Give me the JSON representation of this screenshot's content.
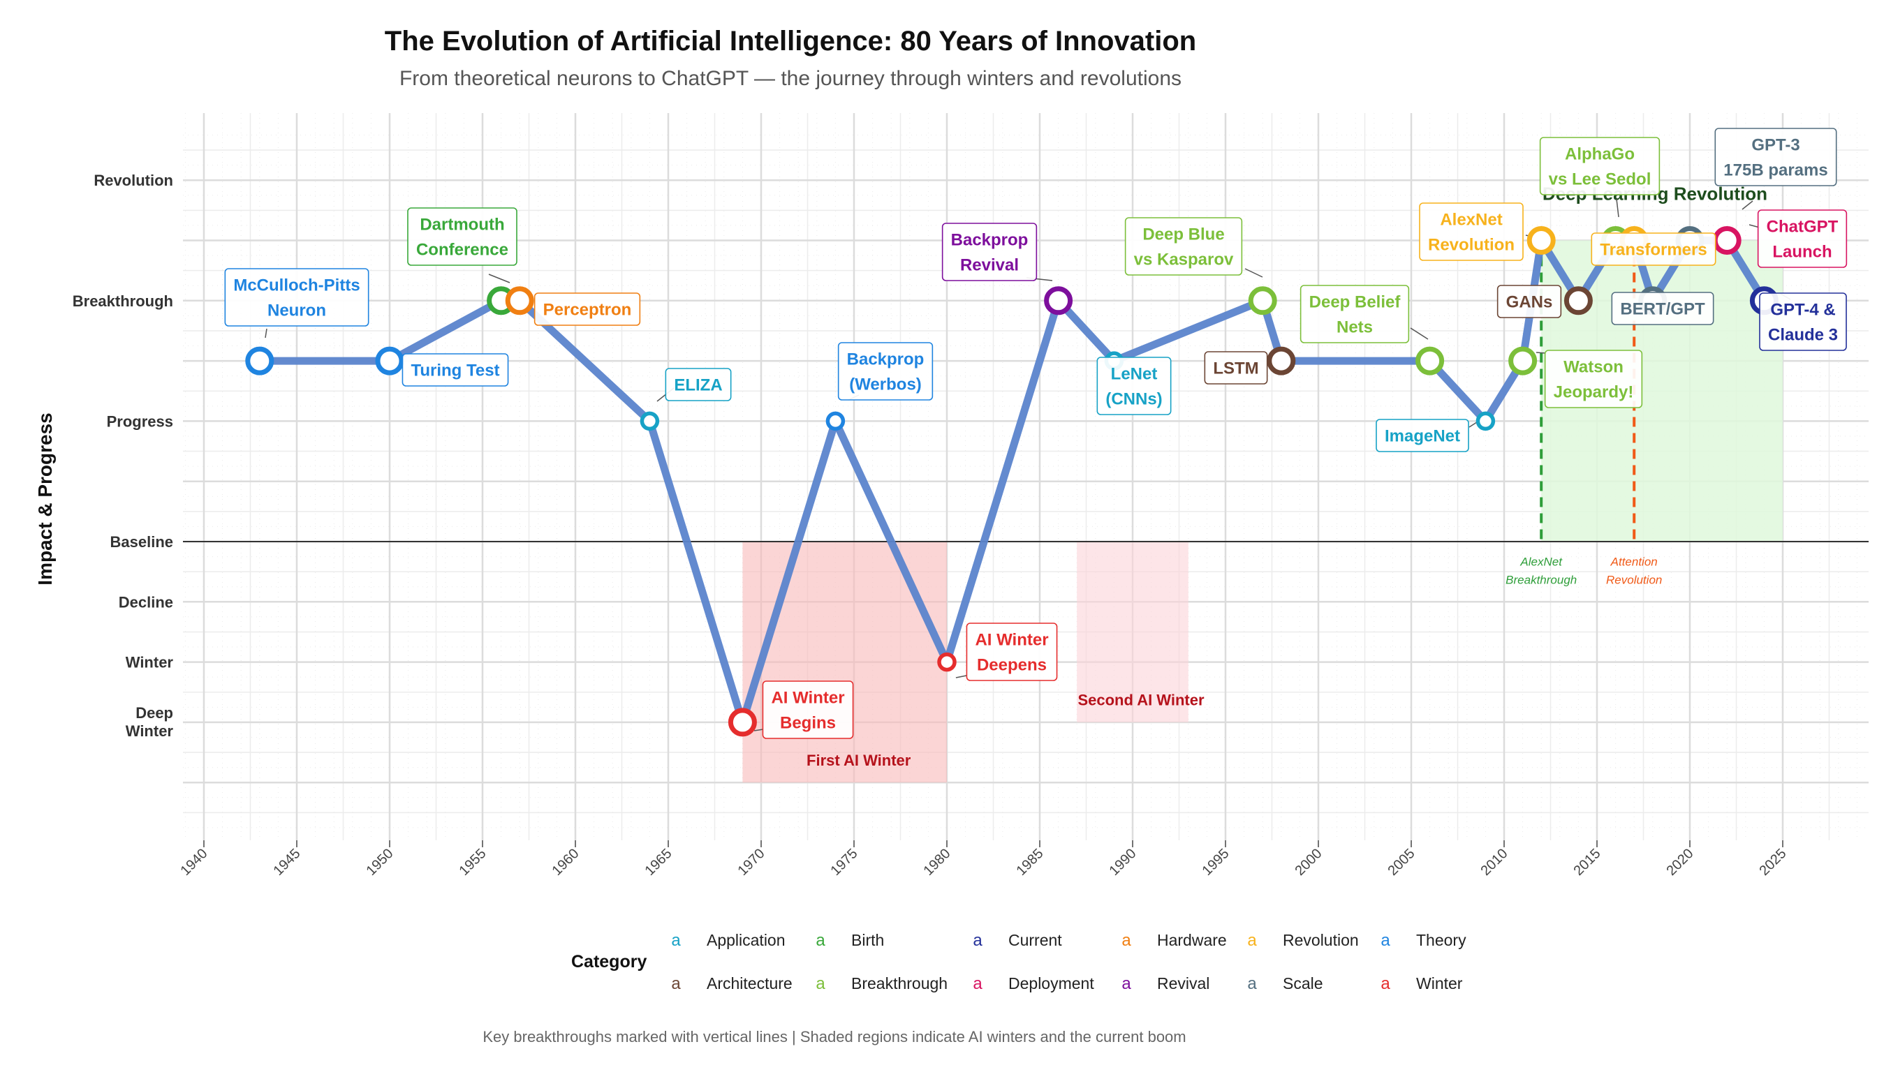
{
  "chart_data": {
    "type": "line",
    "title": "The Evolution of Artificial Intelligence: 80 Years of Innovation",
    "subtitle": "From theoretical neurons to ChatGPT — the journey through winters and revolutions",
    "ylabel": "Impact & Progress",
    "xlabel": "",
    "xlim": [
      1939,
      2029
    ],
    "ylim": [
      -5,
      7
    ],
    "x_ticks": [
      "1940",
      "1945",
      "1950",
      "1955",
      "1960",
      "1965",
      "1970",
      "1975",
      "1980",
      "1985",
      "1990",
      "1995",
      "2000",
      "2005",
      "2010",
      "2015",
      "2020",
      "2025"
    ],
    "y_ticks": [
      {
        "value": 6,
        "label": "Revolution"
      },
      {
        "value": 4,
        "label": "Breakthrough"
      },
      {
        "value": 2,
        "label": "Progress"
      },
      {
        "value": 0,
        "label": "Baseline"
      },
      {
        "value": -1,
        "label": "Decline"
      },
      {
        "value": -2,
        "label": "Winter"
      },
      {
        "value": -3,
        "label": "Deep Winter"
      }
    ],
    "grid": true,
    "line_color": "#5b84cc",
    "points": [
      {
        "x": 1943,
        "y": 3,
        "label": "McCulloch-Pitts Neuron",
        "category": "Theory"
      },
      {
        "x": 1950,
        "y": 3,
        "label": "Turing Test",
        "category": "Theory"
      },
      {
        "x": 1956,
        "y": 4,
        "label": "Dartmouth Conference",
        "category": "Birth"
      },
      {
        "x": 1957,
        "y": 4,
        "label": "Perceptron",
        "category": "Hardware"
      },
      {
        "x": 1964,
        "y": 2,
        "label": "ELIZA",
        "category": "Application"
      },
      {
        "x": 1969,
        "y": -3,
        "label": "AI Winter Begins",
        "category": "Winter"
      },
      {
        "x": 1974,
        "y": 2,
        "label": "Backprop (Werbos)",
        "category": "Theory"
      },
      {
        "x": 1980,
        "y": -2,
        "label": "AI Winter Deepens",
        "category": "Winter"
      },
      {
        "x": 1986,
        "y": 4,
        "label": "Backprop Revival",
        "category": "Revival"
      },
      {
        "x": 1989,
        "y": 3,
        "label": "LeNet (CNNs)",
        "category": "Application"
      },
      {
        "x": 1997,
        "y": 4,
        "label": "Deep Blue vs Kasparov",
        "category": "Breakthrough"
      },
      {
        "x": 1998,
        "y": 3,
        "label": "LSTM",
        "category": "Architecture"
      },
      {
        "x": 2006,
        "y": 3,
        "label": "Deep Belief Nets",
        "category": "Breakthrough"
      },
      {
        "x": 2009,
        "y": 2,
        "label": "ImageNet",
        "category": "Application"
      },
      {
        "x": 2011,
        "y": 3,
        "label": "Watson Jeopardy!",
        "category": "Breakthrough"
      },
      {
        "x": 2012,
        "y": 5,
        "label": "AlexNet Revolution",
        "category": "Revolution"
      },
      {
        "x": 2014,
        "y": 4,
        "label": "GANs",
        "category": "Architecture"
      },
      {
        "x": 2016,
        "y": 5,
        "label": "AlphaGo vs Lee Sedol",
        "category": "Breakthrough"
      },
      {
        "x": 2017,
        "y": 5,
        "label": "Transformers",
        "category": "Revolution"
      },
      {
        "x": 2018,
        "y": 4,
        "label": "BERT/GPT",
        "category": "Scale"
      },
      {
        "x": 2020,
        "y": 5,
        "label": "GPT-3 175B params",
        "category": "Scale"
      },
      {
        "x": 2022,
        "y": 5,
        "label": "ChatGPT Launch",
        "category": "Deployment"
      },
      {
        "x": 2024,
        "y": 4,
        "label": "GPT-4 & Claude 3",
        "category": "Current"
      }
    ],
    "shaded_regions": [
      {
        "x0": 1969,
        "x1": 1980,
        "y0": -4,
        "y1": 0,
        "label": "First AI Winter",
        "color": "#f9b9b9"
      },
      {
        "x0": 1987,
        "x1": 1993,
        "y0": -3,
        "y1": 0,
        "label": "Second AI Winter",
        "color": "#fcd4d8"
      },
      {
        "x0": 2012,
        "x1": 2025,
        "y0": 0,
        "y1": 5,
        "label": "Deep Learning Revolution",
        "color": "#dff8dc"
      }
    ],
    "vertical_lines": [
      {
        "x": 2012,
        "label": "AlexNet Breakthrough",
        "color": "#2f9e3a"
      },
      {
        "x": 2017,
        "label": "Attention Revolution",
        "color": "#f05a18"
      }
    ],
    "legend": {
      "title": "Category",
      "placement": "bottom",
      "key_glyph": "a",
      "items": [
        {
          "name": "Application",
          "color": "#17a2c6"
        },
        {
          "name": "Birth",
          "color": "#39a83a"
        },
        {
          "name": "Current",
          "color": "#23309a"
        },
        {
          "name": "Hardware",
          "color": "#f07f12"
        },
        {
          "name": "Revolution",
          "color": "#f7b21c"
        },
        {
          "name": "Theory",
          "color": "#1f84e0"
        },
        {
          "name": "Architecture",
          "color": "#6b4534"
        },
        {
          "name": "Breakthrough",
          "color": "#7cbf3a"
        },
        {
          "name": "Deployment",
          "color": "#d81461"
        },
        {
          "name": "Revival",
          "color": "#7d0f9c"
        },
        {
          "name": "Scale",
          "color": "#546f80"
        },
        {
          "name": "Winter",
          "color": "#e52d2d"
        }
      ]
    },
    "caption": "Key breakthroughs marked with vertical lines | Shaded regions indicate AI winters and the current boom"
  }
}
